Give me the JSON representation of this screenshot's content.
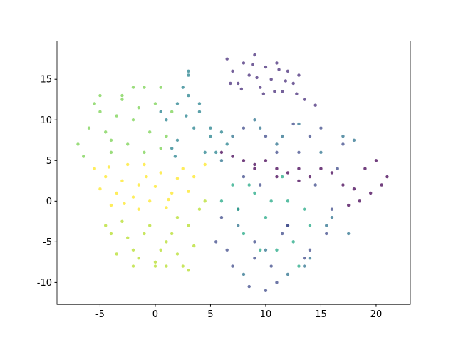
{
  "chart_data": {
    "type": "scatter",
    "xlim": [
      -8.9,
      23.1
    ],
    "ylim": [
      -12.7,
      19.7
    ],
    "xticks": [
      -5,
      0,
      5,
      10,
      15,
      20
    ],
    "yticks": [
      -10,
      -5,
      0,
      5,
      10,
      15
    ],
    "grid": false,
    "series": [
      {
        "color": "#472c7a",
        "x": [
          6.5,
          7,
          7.5,
          8,
          8.5,
          9,
          9.5,
          10,
          10.5,
          11,
          11.5,
          12,
          12.5,
          13,
          6.8,
          7.8,
          8.8,
          9.8,
          10.8,
          11.8,
          12.8,
          13.5,
          14.5,
          9.2,
          11.2
        ],
        "values": [
          17.5,
          16,
          14.5,
          17,
          15.5,
          18,
          14,
          16.5,
          15,
          17,
          13.5,
          16,
          14.5,
          15.5,
          14.5,
          13.8,
          16.8,
          13.2,
          13.5,
          14.8,
          13.2,
          12.5,
          11.8,
          15.2,
          16.2
        ]
      },
      {
        "color": "#fde725",
        "x": [
          -5.5,
          -4.5,
          -3.5,
          -2.5,
          -1.5,
          -0.5,
          0.5,
          1.5,
          2.5,
          3.5,
          4.5,
          -5,
          -4,
          -3,
          -2,
          -1,
          0,
          1,
          2,
          3,
          -4.2,
          -2.8,
          -0.8,
          1.2,
          -1.5
        ],
        "values": [
          4,
          3,
          1,
          4.5,
          2,
          0,
          3.5,
          1,
          4,
          3,
          4.5,
          1.5,
          -0.5,
          2.5,
          0.5,
          4.5,
          1.8,
          -0.8,
          2.8,
          1.2,
          4.2,
          -0.3,
          3,
          0.2,
          -1
        ]
      },
      {
        "color": "#b5de2b",
        "x": [
          -4,
          -3,
          -2,
          -1,
          0,
          1,
          2,
          3,
          4,
          -3.5,
          -2.5,
          -1.5,
          -0.5,
          0.5,
          1.5,
          2.5,
          3.5,
          4.5,
          -4.5,
          0,
          2,
          3,
          1,
          -2
        ],
        "values": [
          -4,
          -2.5,
          -6,
          -4,
          -7.5,
          -5,
          -6.5,
          -3,
          -1,
          -6.5,
          -4.5,
          -7,
          -3,
          -6,
          -4,
          -8,
          -5.5,
          0,
          -3,
          -8,
          -2,
          -8.5,
          -8,
          -8
        ]
      },
      {
        "color": "#7ad151",
        "x": [
          -7,
          -6,
          -5,
          -4,
          -3,
          -2,
          -1,
          0,
          1,
          -6.5,
          -5.5,
          -4.5,
          -3.5,
          -2.5,
          -1.5,
          -0.5,
          0.5,
          1.5,
          -5,
          -3,
          -1,
          0.5,
          -2,
          -4
        ],
        "values": [
          7,
          9,
          11,
          6,
          13,
          10,
          14,
          12,
          8,
          5.5,
          12,
          8.5,
          10.5,
          7,
          11.5,
          8.5,
          14,
          11,
          13,
          12.5,
          6,
          6.5,
          14,
          7.5
        ]
      },
      {
        "color": "#26828e",
        "x": [
          1,
          2,
          3,
          4,
          5,
          6,
          2.5,
          3.5,
          4.5,
          1.5,
          2,
          3,
          4,
          5.5,
          6.5,
          0.5,
          3,
          5,
          2.8,
          1.8
        ],
        "values": [
          10,
          12,
          15.5,
          11,
          8,
          8.5,
          14,
          9,
          6,
          6.5,
          7.5,
          13,
          12,
          6,
          7,
          11,
          16,
          9,
          10.5,
          5.5
        ]
      },
      {
        "color": "#3e4a89",
        "x": [
          6,
          7,
          8,
          9,
          10,
          11,
          12,
          13,
          14,
          15,
          16,
          17,
          6.5,
          7.5,
          8.5,
          9.5,
          10.5,
          11.5,
          12.5,
          13.5,
          14.5,
          15.5,
          16.5,
          5.5,
          8,
          10,
          12,
          14,
          9,
          11
        ],
        "values": [
          -2,
          -8,
          3,
          -5,
          8,
          -10,
          -3,
          6,
          -6,
          9,
          -1,
          7,
          -6,
          -1,
          -10.5,
          2,
          -8,
          -4,
          9.5,
          -7,
          2,
          -4,
          4,
          -5,
          9,
          -11,
          -3,
          8,
          -7,
          6
        ]
      },
      {
        "color": "#22a884",
        "x": [
          6,
          7,
          8,
          9,
          10,
          11,
          12,
          13,
          14,
          7.5,
          9.5,
          11.5,
          13.5,
          10.5,
          8.5,
          12.5
        ],
        "values": [
          0,
          2,
          -4,
          1,
          -2,
          -6,
          0,
          -8,
          -3,
          -1,
          -6,
          3,
          -1,
          0,
          2,
          -5
        ]
      },
      {
        "color": "#2c718e",
        "x": [
          7,
          9,
          11,
          13,
          15,
          17,
          6,
          8,
          10,
          12,
          14,
          16,
          18,
          15.5,
          17.5,
          13.5,
          11.5,
          9.5,
          7.5
        ],
        "values": [
          8,
          10,
          7,
          9.5,
          6,
          8,
          5,
          -9,
          -6,
          -9,
          -7,
          -2,
          7.5,
          -3,
          -4,
          -8,
          8,
          9,
          -3
        ]
      },
      {
        "color": "#440154",
        "x": [
          6,
          7,
          8,
          9,
          10,
          11,
          12,
          13,
          14,
          15,
          16,
          17,
          18,
          19,
          20,
          21,
          17.5,
          18.5,
          19.5,
          20.5,
          11,
          9,
          13
        ],
        "values": [
          6,
          5.5,
          5,
          4.5,
          5,
          4,
          3.5,
          4,
          3,
          4,
          3.5,
          2,
          1.5,
          4,
          5,
          3,
          -0.5,
          0,
          1,
          2,
          3,
          4,
          2.5
        ]
      }
    ]
  }
}
